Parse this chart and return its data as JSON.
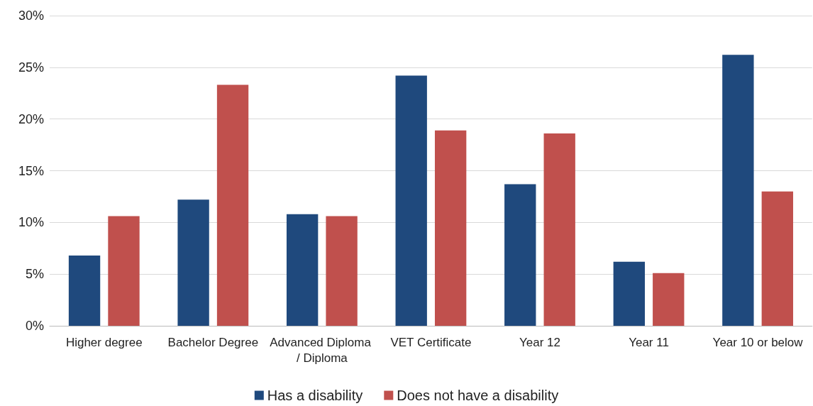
{
  "chart_data": {
    "type": "bar",
    "categories": [
      "Higher degree",
      "Bachelor Degree",
      "Advanced Diploma / Diploma",
      "VET Certificate",
      "Year 12",
      "Year 11",
      "Year 10 or below"
    ],
    "series": [
      {
        "name": "Has a disability",
        "color": "#1f497d",
        "values": [
          6.8,
          12.2,
          10.8,
          24.2,
          13.7,
          6.2,
          26.2
        ]
      },
      {
        "name": "Does not have a disability",
        "color": "#c0504d",
        "values": [
          10.6,
          23.3,
          10.6,
          18.9,
          18.6,
          5.1,
          13.0
        ]
      }
    ],
    "ylim": [
      0,
      30
    ],
    "yticks": [
      {
        "value": 0,
        "label": "0%"
      },
      {
        "value": 5,
        "label": "5%"
      },
      {
        "value": 10,
        "label": "10%"
      },
      {
        "value": 15,
        "label": "15%"
      },
      {
        "value": 20,
        "label": "20%"
      },
      {
        "value": 25,
        "label": "25%"
      },
      {
        "value": 30,
        "label": "30%"
      }
    ],
    "grid": "y",
    "legend": "bottom"
  }
}
